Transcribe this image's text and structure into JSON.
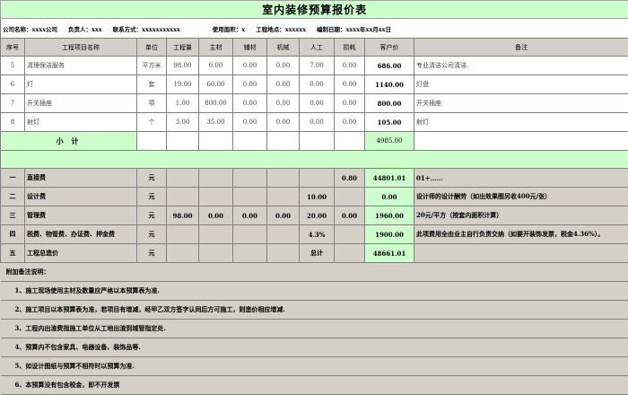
{
  "title": "室内装修预算报价表",
  "info": {
    "company": "公司名称：xxxx公司",
    "manager": "负责人：xxx",
    "contact": "联系方式：xxxxxxxxxxx",
    "area": "使用面积：x",
    "site": "工程地点：xxxxxx",
    "date": "编制日期：xxxx年xx月xx日"
  },
  "headers": [
    "序号",
    "工程项目名称",
    "单位",
    "工程量",
    "主材",
    "辅材",
    "机械",
    "人工",
    "损耗",
    "客户价",
    "备注"
  ],
  "items": [
    [
      "5",
      "清理保洁服务",
      "平方米",
      "98.00",
      "0.00",
      "0.00",
      "0.00",
      "7.00",
      "0.00",
      "686.00",
      "专业清洁公司清洁."
    ],
    [
      "6",
      "灯",
      "套",
      "19.00",
      "60.00",
      "0.00",
      "0.00",
      "0.00",
      "0.00",
      "1140.00",
      "灯盘"
    ],
    [
      "7",
      "开关插座",
      "项",
      "1.00",
      "800.00",
      "0.00",
      "0.00",
      "0.00",
      "0.00",
      "800.00",
      "开关插座"
    ],
    [
      "8",
      "射灯",
      "个",
      "3.00",
      "35.00",
      "0.00",
      "0.00",
      "0.00",
      "0.00",
      "105.00",
      "射灯"
    ]
  ],
  "subtotal": {
    "label": "小 计",
    "value": "4985.00"
  },
  "fees": [
    [
      "一",
      "直接费",
      "元",
      "",
      "",
      "",
      "",
      "",
      "0.80",
      "44801.01",
      "01+……"
    ],
    [
      "二",
      "设计费",
      "元",
      "",
      "",
      "",
      "",
      "10.00",
      "",
      "0.00",
      "设计师的设计酬劳（如出效果图另收400元/张）"
    ],
    [
      "三",
      "管理费",
      "元",
      "98.00",
      "0.00",
      "0.00",
      "0.00",
      "20.00",
      "0.00",
      "1960.00",
      "20元/平方（按套内面积计算）"
    ],
    [
      "四",
      "税费、物管费、办证费、押金费",
      "元",
      "",
      "",
      "",
      "",
      "4.3%",
      "",
      "1900.00",
      "此项费用全由业主自行负责交纳（如要开装饰发票，税金4.36%）。"
    ],
    [
      "五",
      "工程总造价",
      "元",
      "",
      "",
      "",
      "",
      "总计",
      "",
      "48661.01",
      ""
    ]
  ],
  "notes": [
    "附加备注说明：",
    "1、施工现场使用主材及数量应严格以本预算表为准.",
    "2、施工项目以本预算表为准，若项目有增减，经甲乙双方签字认同后方可施工，则造价相应增减.",
    "3、工程内出渣费指施工单位从工地出渣到城管指定处.",
    "4、预算内不包含家具、电器设备、装饰品等.",
    "5、如设计图纸与预算不相符时以预算为准.",
    "6、本预算没有包含税金，即不开发票"
  ],
  "colors": {
    "green": "#ccffcc",
    "gray": "#d4d0c8"
  }
}
